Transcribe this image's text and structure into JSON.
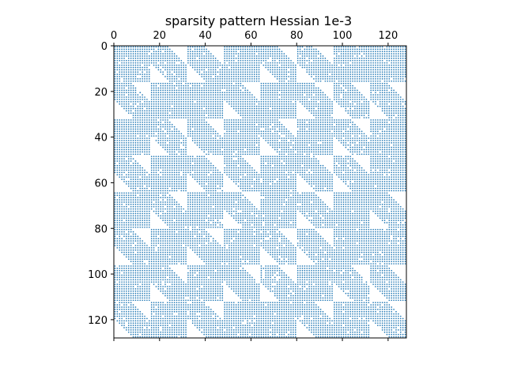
{
  "chart_data": {
    "type": "heatmap",
    "subtype": "sparsity-pattern",
    "title": "sparsity pattern Hessian 1e-3",
    "matrix_size": [
      128,
      128
    ],
    "block_size": 16,
    "block_grid": [
      8,
      8
    ],
    "xlim": [
      0,
      128
    ],
    "ylim": [
      0,
      128
    ],
    "x_axis_position": "top",
    "y_axis_inverted": true,
    "x_ticks": [
      0,
      20,
      40,
      60,
      80,
      100,
      120
    ],
    "y_ticks": [
      0,
      20,
      40,
      60,
      80,
      100,
      120
    ],
    "x_tick_labels": [
      "0",
      "20",
      "40",
      "60",
      "80",
      "100",
      "120"
    ],
    "y_tick_labels": [
      "0",
      "20",
      "40",
      "60",
      "80",
      "100",
      "120"
    ],
    "diagonal_band_offset": 7,
    "dense_blocks": [
      [
        1,
        0,
        0,
        1,
        0,
        0,
        1,
        1
      ],
      [
        0,
        1,
        1,
        0,
        1,
        0,
        0,
        0
      ],
      [
        1,
        0,
        0,
        1,
        0,
        1,
        0,
        1
      ],
      [
        0,
        1,
        0,
        0,
        1,
        0,
        0,
        1
      ],
      [
        1,
        0,
        1,
        0,
        1,
        0,
        1,
        0
      ],
      [
        0,
        1,
        0,
        1,
        0,
        0,
        1,
        1
      ],
      [
        1,
        0,
        1,
        0,
        0,
        1,
        0,
        0
      ],
      [
        0,
        1,
        0,
        1,
        1,
        0,
        1,
        0
      ]
    ],
    "marker_color": "#1f77b4",
    "marker": "small dot",
    "grid": false
  }
}
